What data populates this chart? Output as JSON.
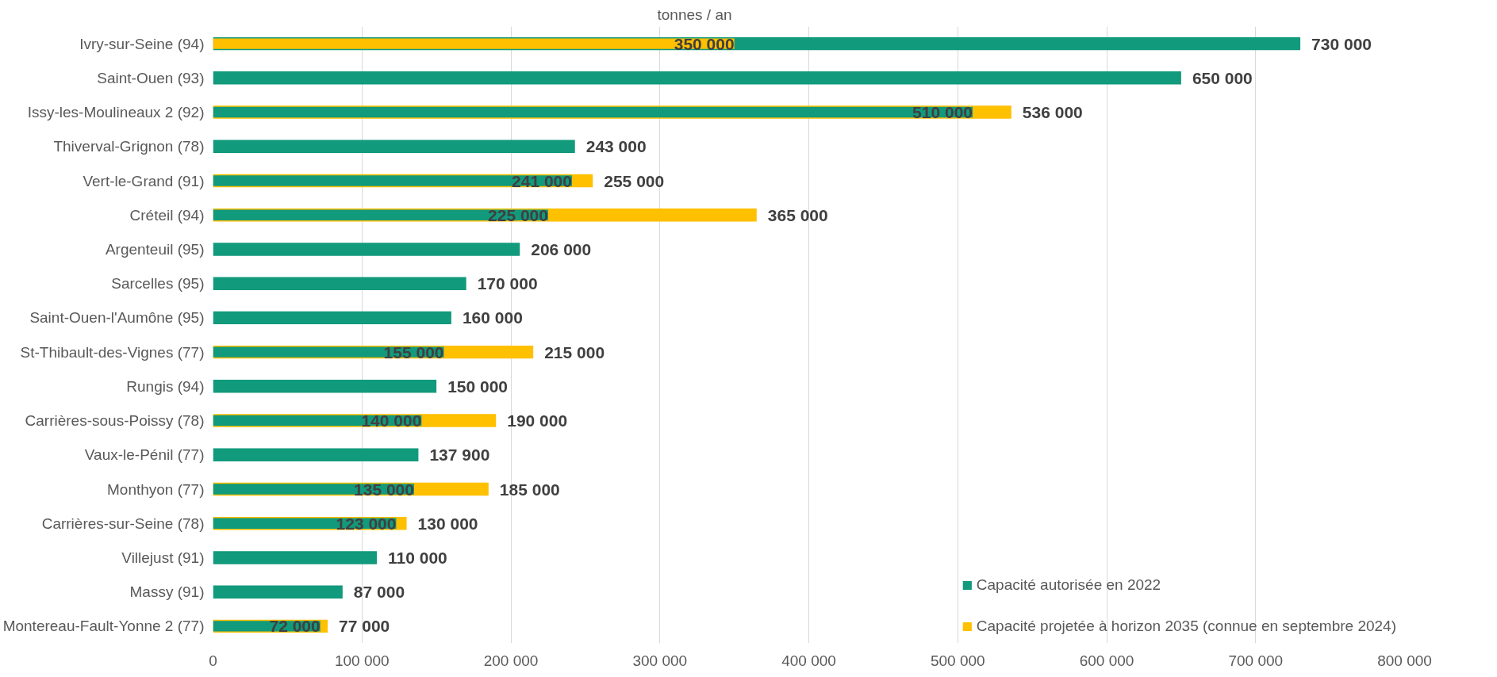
{
  "chart_data": {
    "type": "bar",
    "orientation": "horizontal",
    "xlabel": "tonnes / an",
    "categories": [
      "Ivry-sur-Seine (94)",
      "Saint-Ouen (93)",
      "Issy-les-Moulineaux 2 (92)",
      "Thiverval-Grignon (78)",
      "Vert-le-Grand (91)",
      "Créteil (94)",
      "Argenteuil (95)",
      "Sarcelles (95)",
      "Saint-Ouen-l'Aumône (95)",
      "St-Thibault-des-Vignes (77)",
      "Rungis (94)",
      "Carrières-sous-Poissy (78)",
      "Vaux-le-Pénil (77)",
      "Monthyon (77)",
      "Carrières-sur-Seine (78)",
      "Villejust (91)",
      "Massy (91)",
      "Montereau-Fault-Yonne 2 (77)"
    ],
    "series": [
      {
        "name": "Capacité autorisée en 2022",
        "color": "#119a7c",
        "values": [
          730000,
          650000,
          510000,
          243000,
          241000,
          225000,
          206000,
          170000,
          160000,
          155000,
          150000,
          140000,
          137900,
          135000,
          123000,
          110000,
          87000,
          72000
        ],
        "value_labels": [
          "730 000",
          "650 000",
          "510 000",
          "243 000",
          "241 000",
          "225 000",
          "206 000",
          "170 000",
          "160 000",
          "155 000",
          "150 000",
          "140 000",
          "137 900",
          "135 000",
          "123 000",
          "110 000",
          "87 000",
          "72 000"
        ]
      },
      {
        "name": "Capacité projetée à horizon 2035 (connue en septembre 2024)",
        "color": "#ffc000",
        "values": [
          350000,
          null,
          536000,
          null,
          255000,
          365000,
          null,
          null,
          null,
          215000,
          null,
          190000,
          null,
          185000,
          130000,
          null,
          null,
          77000
        ],
        "value_labels": [
          "350 000",
          null,
          "536 000",
          null,
          "255 000",
          "365 000",
          null,
          null,
          null,
          "215 000",
          null,
          "190 000",
          null,
          "185 000",
          "130 000",
          null,
          null,
          "77 000"
        ]
      }
    ],
    "xlim": [
      0,
      800000
    ],
    "xticks": [
      0,
      {
        "value": 100000,
        "label": "100 000"
      },
      {
        "value": 200000,
        "label": "200 000"
      },
      {
        "value": 300000,
        "label": "300 000"
      },
      {
        "value": 400000,
        "label": "400 000"
      },
      {
        "value": 500000,
        "label": "500 000"
      },
      {
        "value": 600000,
        "label": "600 000"
      },
      {
        "value": 700000,
        "label": "700 000"
      },
      {
        "value": 800000,
        "label": "800 000"
      }
    ],
    "grid": "x",
    "legend": "bottom right"
  }
}
